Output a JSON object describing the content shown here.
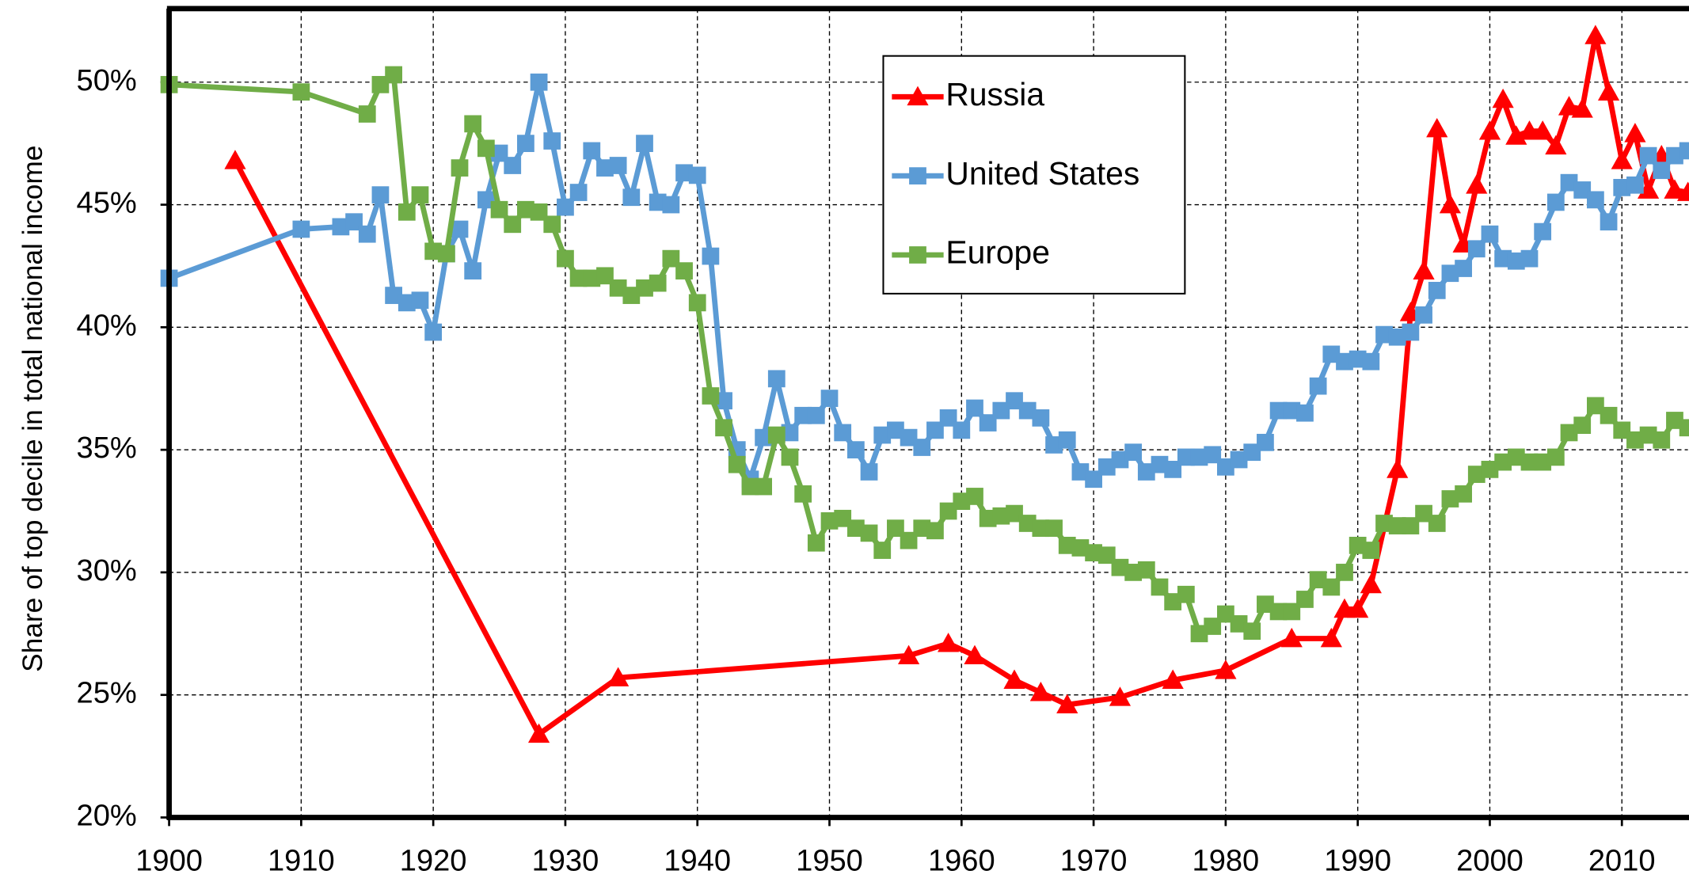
{
  "chart_data": {
    "type": "line",
    "y_label": "Share of top decile in total national income",
    "xlim": [
      1900,
      2015
    ],
    "ylim": [
      20,
      53
    ],
    "xticks": [
      1900,
      1910,
      1920,
      1930,
      1940,
      1950,
      1960,
      1970,
      1980,
      1990,
      2000,
      2010
    ],
    "yticks": [
      {
        "value": 20,
        "label": "20%"
      },
      {
        "value": 25,
        "label": "25%"
      },
      {
        "value": 30,
        "label": "30%"
      },
      {
        "value": 35,
        "label": "35%"
      },
      {
        "value": 40,
        "label": "40%"
      },
      {
        "value": 45,
        "label": "45%"
      },
      {
        "value": 50,
        "label": "50%"
      }
    ],
    "grid": true,
    "legend": "top",
    "series": [
      {
        "name": "Russia",
        "color": "#ff0000",
        "marker": "triangle",
        "x": [
          1905,
          1928,
          1934,
          1956,
          1959,
          1961,
          1964,
          1966,
          1968,
          1972,
          1976,
          1980,
          1985,
          1988,
          1989,
          1990,
          1991,
          1993,
          1994,
          1995,
          1996,
          1997,
          1998,
          1999,
          2000,
          2001,
          2002,
          2003,
          2004,
          2005,
          2006,
          2007,
          2008,
          2009,
          2010,
          2011,
          2012,
          2013,
          2014,
          2015
        ],
        "values": [
          46.8,
          23.4,
          25.7,
          26.6,
          27.1,
          26.6,
          25.6,
          25.1,
          24.6,
          24.9,
          25.6,
          26.0,
          27.3,
          27.3,
          28.5,
          28.5,
          29.5,
          34.2,
          40.6,
          42.3,
          48.1,
          45.0,
          43.4,
          45.8,
          48.0,
          49.3,
          47.8,
          48.0,
          48.0,
          47.4,
          49.0,
          48.9,
          51.9,
          49.6,
          46.8,
          47.9,
          45.6,
          47.0,
          45.6,
          45.5
        ]
      },
      {
        "name": "United States",
        "color": "#5b9bd5",
        "marker": "square",
        "x": [
          1900,
          1910,
          1913,
          1914,
          1915,
          1916,
          1917,
          1918,
          1919,
          1920,
          1921,
          1922,
          1923,
          1924,
          1925,
          1926,
          1927,
          1928,
          1929,
          1930,
          1931,
          1932,
          1933,
          1934,
          1935,
          1936,
          1937,
          1938,
          1939,
          1940,
          1941,
          1942,
          1943,
          1944,
          1945,
          1946,
          1947,
          1948,
          1949,
          1950,
          1951,
          1952,
          1953,
          1954,
          1955,
          1956,
          1957,
          1958,
          1959,
          1960,
          1961,
          1962,
          1963,
          1964,
          1965,
          1966,
          1967,
          1968,
          1969,
          1970,
          1971,
          1972,
          1973,
          1974,
          1975,
          1976,
          1977,
          1978,
          1979,
          1980,
          1981,
          1982,
          1983,
          1984,
          1985,
          1986,
          1987,
          1988,
          1989,
          1990,
          1991,
          1992,
          1993,
          1994,
          1995,
          1996,
          1997,
          1998,
          1999,
          2000,
          2001,
          2002,
          2003,
          2004,
          2005,
          2006,
          2007,
          2008,
          2009,
          2010,
          2011,
          2012,
          2013,
          2014,
          2015
        ],
        "values": [
          42.0,
          44.0,
          44.1,
          44.3,
          43.8,
          45.4,
          41.3,
          41.0,
          41.1,
          39.8,
          43.0,
          44.0,
          42.3,
          45.2,
          47.1,
          46.6,
          47.5,
          50.0,
          47.6,
          44.9,
          45.5,
          47.2,
          46.5,
          46.6,
          45.3,
          47.5,
          45.1,
          45.0,
          46.3,
          46.2,
          42.9,
          37.0,
          35.0,
          33.8,
          35.5,
          37.9,
          35.7,
          36.4,
          36.4,
          37.1,
          35.7,
          35.0,
          34.1,
          35.6,
          35.8,
          35.5,
          35.1,
          35.8,
          36.3,
          35.8,
          36.7,
          36.1,
          36.6,
          37.0,
          36.6,
          36.3,
          35.2,
          35.4,
          34.1,
          33.8,
          34.3,
          34.6,
          34.9,
          34.1,
          34.4,
          34.2,
          34.7,
          34.7,
          34.8,
          34.3,
          34.6,
          34.9,
          35.3,
          36.6,
          36.6,
          36.5,
          37.6,
          38.9,
          38.6,
          38.7,
          38.6,
          39.7,
          39.6,
          39.8,
          40.5,
          41.5,
          42.2,
          42.4,
          43.2,
          43.8,
          42.8,
          42.7,
          42.8,
          43.9,
          45.1,
          45.9,
          45.6,
          45.2,
          44.3,
          45.7,
          45.8,
          47.0,
          46.4,
          47.0,
          47.2
        ]
      },
      {
        "name": "Europe",
        "color": "#70ad47",
        "marker": "square",
        "x": [
          1900,
          1910,
          1915,
          1916,
          1917,
          1918,
          1919,
          1920,
          1921,
          1922,
          1923,
          1924,
          1925,
          1926,
          1927,
          1928,
          1929,
          1930,
          1931,
          1932,
          1933,
          1934,
          1935,
          1936,
          1937,
          1938,
          1939,
          1940,
          1941,
          1942,
          1943,
          1944,
          1945,
          1946,
          1947,
          1948,
          1949,
          1950,
          1951,
          1952,
          1953,
          1954,
          1955,
          1956,
          1957,
          1958,
          1959,
          1960,
          1961,
          1962,
          1963,
          1964,
          1965,
          1966,
          1967,
          1968,
          1969,
          1970,
          1971,
          1972,
          1973,
          1974,
          1975,
          1976,
          1977,
          1978,
          1979,
          1980,
          1981,
          1982,
          1983,
          1984,
          1985,
          1986,
          1987,
          1988,
          1989,
          1990,
          1991,
          1992,
          1993,
          1994,
          1995,
          1996,
          1997,
          1998,
          1999,
          2000,
          2001,
          2002,
          2003,
          2004,
          2005,
          2006,
          2007,
          2008,
          2009,
          2010,
          2011,
          2012,
          2013,
          2014,
          2015
        ],
        "values": [
          49.9,
          49.6,
          48.7,
          49.9,
          50.3,
          44.7,
          45.4,
          43.1,
          43.0,
          46.5,
          48.3,
          47.3,
          44.8,
          44.2,
          44.8,
          44.7,
          44.2,
          42.8,
          42.0,
          42.0,
          42.1,
          41.6,
          41.3,
          41.6,
          41.8,
          42.8,
          42.3,
          41.0,
          37.2,
          35.9,
          34.4,
          33.5,
          33.5,
          35.6,
          34.7,
          33.2,
          31.2,
          32.1,
          32.2,
          31.8,
          31.6,
          30.9,
          31.8,
          31.3,
          31.8,
          31.7,
          32.5,
          32.9,
          33.1,
          32.2,
          32.3,
          32.4,
          32.0,
          31.8,
          31.8,
          31.1,
          31.0,
          30.8,
          30.7,
          30.2,
          30.0,
          30.1,
          29.4,
          28.8,
          29.1,
          27.5,
          27.8,
          28.3,
          27.9,
          27.6,
          28.7,
          28.4,
          28.4,
          28.9,
          29.7,
          29.4,
          30.0,
          31.1,
          30.9,
          32.0,
          31.9,
          31.9,
          32.4,
          32.0,
          33.0,
          33.2,
          34.0,
          34.2,
          34.5,
          34.7,
          34.5,
          34.5,
          34.7,
          35.7,
          36.0,
          36.8,
          36.4,
          35.8,
          35.4,
          35.6,
          35.4,
          36.2,
          35.9
        ]
      }
    ]
  }
}
